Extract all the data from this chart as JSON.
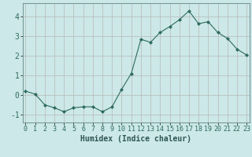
{
  "x": [
    0,
    1,
    2,
    3,
    4,
    5,
    6,
    7,
    8,
    9,
    10,
    11,
    12,
    13,
    14,
    15,
    16,
    17,
    18,
    19,
    20,
    21,
    22,
    23
  ],
  "y": [
    0.2,
    0.05,
    -0.5,
    -0.65,
    -0.85,
    -0.65,
    -0.6,
    -0.6,
    -0.85,
    -0.6,
    0.3,
    1.1,
    2.85,
    2.7,
    3.2,
    3.5,
    3.85,
    4.3,
    3.65,
    3.75,
    3.2,
    2.9,
    2.35,
    2.05
  ],
  "line_color": "#2e6b5e",
  "marker": "D",
  "marker_size": 2,
  "bg_color": "#cce8e8",
  "grid_color": "#b8b8b8",
  "xlabel": "Humidex (Indice chaleur)",
  "xlabel_fontsize": 7,
  "tick_fontsize": 6,
  "yticks": [
    -1,
    0,
    1,
    2,
    3,
    4
  ],
  "xticks": [
    0,
    1,
    2,
    3,
    4,
    5,
    6,
    7,
    8,
    9,
    10,
    11,
    12,
    13,
    14,
    15,
    16,
    17,
    18,
    19,
    20,
    21,
    22,
    23
  ],
  "ylim": [
    -1.4,
    4.7
  ],
  "xlim": [
    -0.3,
    23.3
  ]
}
